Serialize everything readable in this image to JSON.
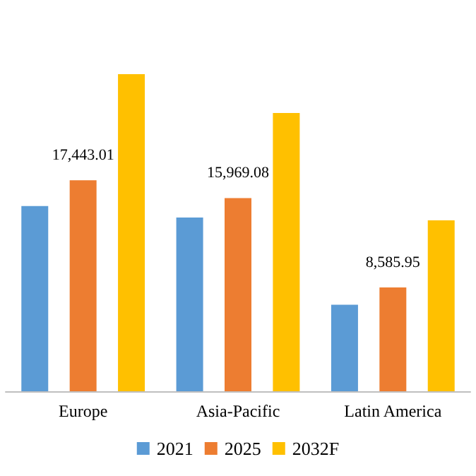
{
  "chart_data": {
    "type": "bar",
    "categories": [
      "Europe",
      "Asia-Pacific",
      "Latin America"
    ],
    "series": [
      {
        "name": "2021",
        "color": "#5b9bd5",
        "values": [
          15300,
          14360,
          7150
        ]
      },
      {
        "name": "2025",
        "color": "#ed7d31",
        "values": [
          17443.01,
          15969.08,
          8585.95
        ],
        "value_labels": [
          "17,443.01",
          "15,969.08",
          "8,585.95"
        ]
      },
      {
        "name": "2032F",
        "color": "#ffc000",
        "values": [
          26210,
          22990,
          14130
        ]
      }
    ],
    "legend": "bottom"
  }
}
